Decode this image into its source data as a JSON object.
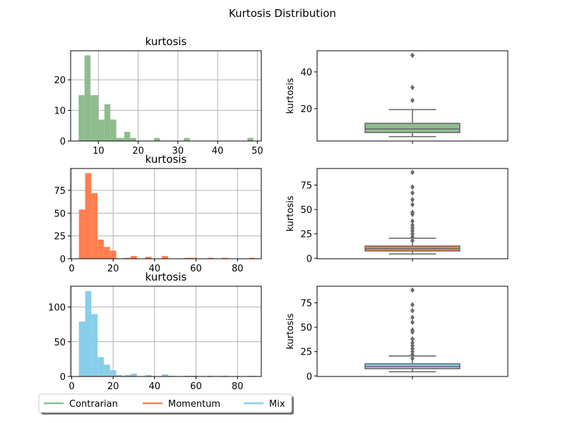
{
  "chart_data": {
    "title": "Kurtosis Distribution",
    "rows": [
      {
        "series": "Contrarian",
        "color": "#8fbc8f",
        "hist": {
          "type": "bar",
          "title": "kurtosis",
          "xlim": [
            3,
            51
          ],
          "ylim": [
            0,
            29.5
          ],
          "xticks": [
            10,
            20,
            30,
            40,
            50
          ],
          "yticks": [
            0,
            10,
            20
          ],
          "bins": [
            {
              "x0": 5.0,
              "x1": 6.5,
              "count": 15
            },
            {
              "x0": 6.5,
              "x1": 8.0,
              "count": 28
            },
            {
              "x0": 8.0,
              "x1": 10.0,
              "count": 15
            },
            {
              "x0": 10.0,
              "x1": 11.5,
              "count": 7
            },
            {
              "x0": 11.5,
              "x1": 13.0,
              "count": 12
            },
            {
              "x0": 13.0,
              "x1": 14.5,
              "count": 7
            },
            {
              "x0": 14.5,
              "x1": 16.5,
              "count": 1
            },
            {
              "x0": 16.5,
              "x1": 18.0,
              "count": 3
            },
            {
              "x0": 18.0,
              "x1": 19.5,
              "count": 1
            },
            {
              "x0": 24.0,
              "x1": 25.5,
              "count": 1
            },
            {
              "x0": 31.5,
              "x1": 33.0,
              "count": 1
            },
            {
              "x0": 47.5,
              "x1": 49.0,
              "count": 1
            }
          ]
        },
        "box": {
          "type": "box",
          "ylabel": "kurtosis",
          "ylim": [
            2.4,
            51.5
          ],
          "yticks": [
            20,
            40
          ],
          "whisker_low": 4.8,
          "q1": 7.0,
          "median": 9.0,
          "q3": 12.0,
          "whisker_high": 19.5,
          "outliers": [
            24.5,
            31.5,
            49.0
          ]
        }
      },
      {
        "series": "Momentum",
        "color": "#ff7f50",
        "hist": {
          "type": "bar",
          "title": "kurtosis",
          "xlim": [
            -0.5,
            91.5
          ],
          "ylim": [
            0,
            99
          ],
          "xticks": [
            0,
            20,
            40,
            60,
            80
          ],
          "yticks": [
            0,
            25,
            50,
            75
          ],
          "bins": [
            {
              "x0": 3.5,
              "x1": 6.5,
              "count": 54
            },
            {
              "x0": 6.5,
              "x1": 9.5,
              "count": 94
            },
            {
              "x0": 9.5,
              "x1": 12.5,
              "count": 72
            },
            {
              "x0": 12.5,
              "x1": 15.5,
              "count": 21
            },
            {
              "x0": 15.5,
              "x1": 18.5,
              "count": 13
            },
            {
              "x0": 18.5,
              "x1": 21.5,
              "count": 9
            },
            {
              "x0": 25.5,
              "x1": 28.5,
              "count": 1
            },
            {
              "x0": 28.5,
              "x1": 31.5,
              "count": 3
            },
            {
              "x0": 35.5,
              "x1": 38.5,
              "count": 2
            },
            {
              "x0": 43.5,
              "x1": 46.5,
              "count": 3
            },
            {
              "x0": 54.5,
              "x1": 57.5,
              "count": 1
            },
            {
              "x0": 57.5,
              "x1": 60.5,
              "count": 1
            },
            {
              "x0": 65.5,
              "x1": 68.5,
              "count": 1
            },
            {
              "x0": 72.5,
              "x1": 75.5,
              "count": 1
            },
            {
              "x0": 85.5,
              "x1": 88.5,
              "count": 1
            }
          ]
        },
        "box": {
          "type": "box",
          "ylabel": "kurtosis",
          "ylim": [
            -0.5,
            92
          ],
          "yticks": [
            0,
            25,
            50,
            75
          ],
          "whisker_low": 4.3,
          "q1": 7.5,
          "median": 9.8,
          "q3": 12.5,
          "whisker_high": 20.5,
          "outliers": [
            18,
            22,
            25,
            28,
            31,
            34,
            38,
            45,
            47,
            55,
            60,
            67,
            73,
            88
          ]
        }
      },
      {
        "series": "Mix",
        "color": "#87ceeb",
        "hist": {
          "type": "bar",
          "title": "kurtosis",
          "xlim": [
            -0.5,
            91.5
          ],
          "ylim": [
            0,
            130
          ],
          "xticks": [
            0,
            20,
            40,
            60,
            80
          ],
          "yticks": [
            0,
            50,
            100
          ],
          "bins": [
            {
              "x0": 3.5,
              "x1": 6.5,
              "count": 79
            },
            {
              "x0": 6.5,
              "x1": 9.5,
              "count": 123
            },
            {
              "x0": 9.5,
              "x1": 12.5,
              "count": 90
            },
            {
              "x0": 12.5,
              "x1": 15.5,
              "count": 28
            },
            {
              "x0": 15.5,
              "x1": 18.5,
              "count": 17
            },
            {
              "x0": 18.5,
              "x1": 21.5,
              "count": 9
            },
            {
              "x0": 21.5,
              "x1": 24.5,
              "count": 2
            },
            {
              "x0": 25.5,
              "x1": 28.5,
              "count": 2
            },
            {
              "x0": 28.5,
              "x1": 31.5,
              "count": 4
            },
            {
              "x0": 35.5,
              "x1": 38.5,
              "count": 2
            },
            {
              "x0": 43.5,
              "x1": 46.5,
              "count": 3
            },
            {
              "x0": 46.5,
              "x1": 49.5,
              "count": 1
            },
            {
              "x0": 54.5,
              "x1": 57.5,
              "count": 1
            },
            {
              "x0": 57.5,
              "x1": 60.5,
              "count": 1
            },
            {
              "x0": 65.5,
              "x1": 68.5,
              "count": 1
            },
            {
              "x0": 72.5,
              "x1": 75.5,
              "count": 1
            },
            {
              "x0": 85.5,
              "x1": 88.5,
              "count": 1
            }
          ]
        },
        "box": {
          "type": "box",
          "ylabel": "kurtosis",
          "ylim": [
            -0.5,
            92
          ],
          "yticks": [
            0,
            25,
            50,
            75
          ],
          "whisker_low": 4.3,
          "q1": 7.5,
          "median": 9.8,
          "q3": 12.5,
          "whisker_high": 20.5,
          "outliers": [
            18,
            22,
            25,
            28,
            31,
            34,
            38,
            45,
            47,
            55,
            60,
            67,
            73,
            88
          ]
        }
      }
    ],
    "legend": {
      "placement": "bottom-left",
      "entries": [
        "Contrarian",
        "Momentum",
        "Mix"
      ]
    },
    "grid": true
  },
  "colors": {
    "box_lines": "#6b6b6b",
    "grid": "#b0b0b0"
  }
}
